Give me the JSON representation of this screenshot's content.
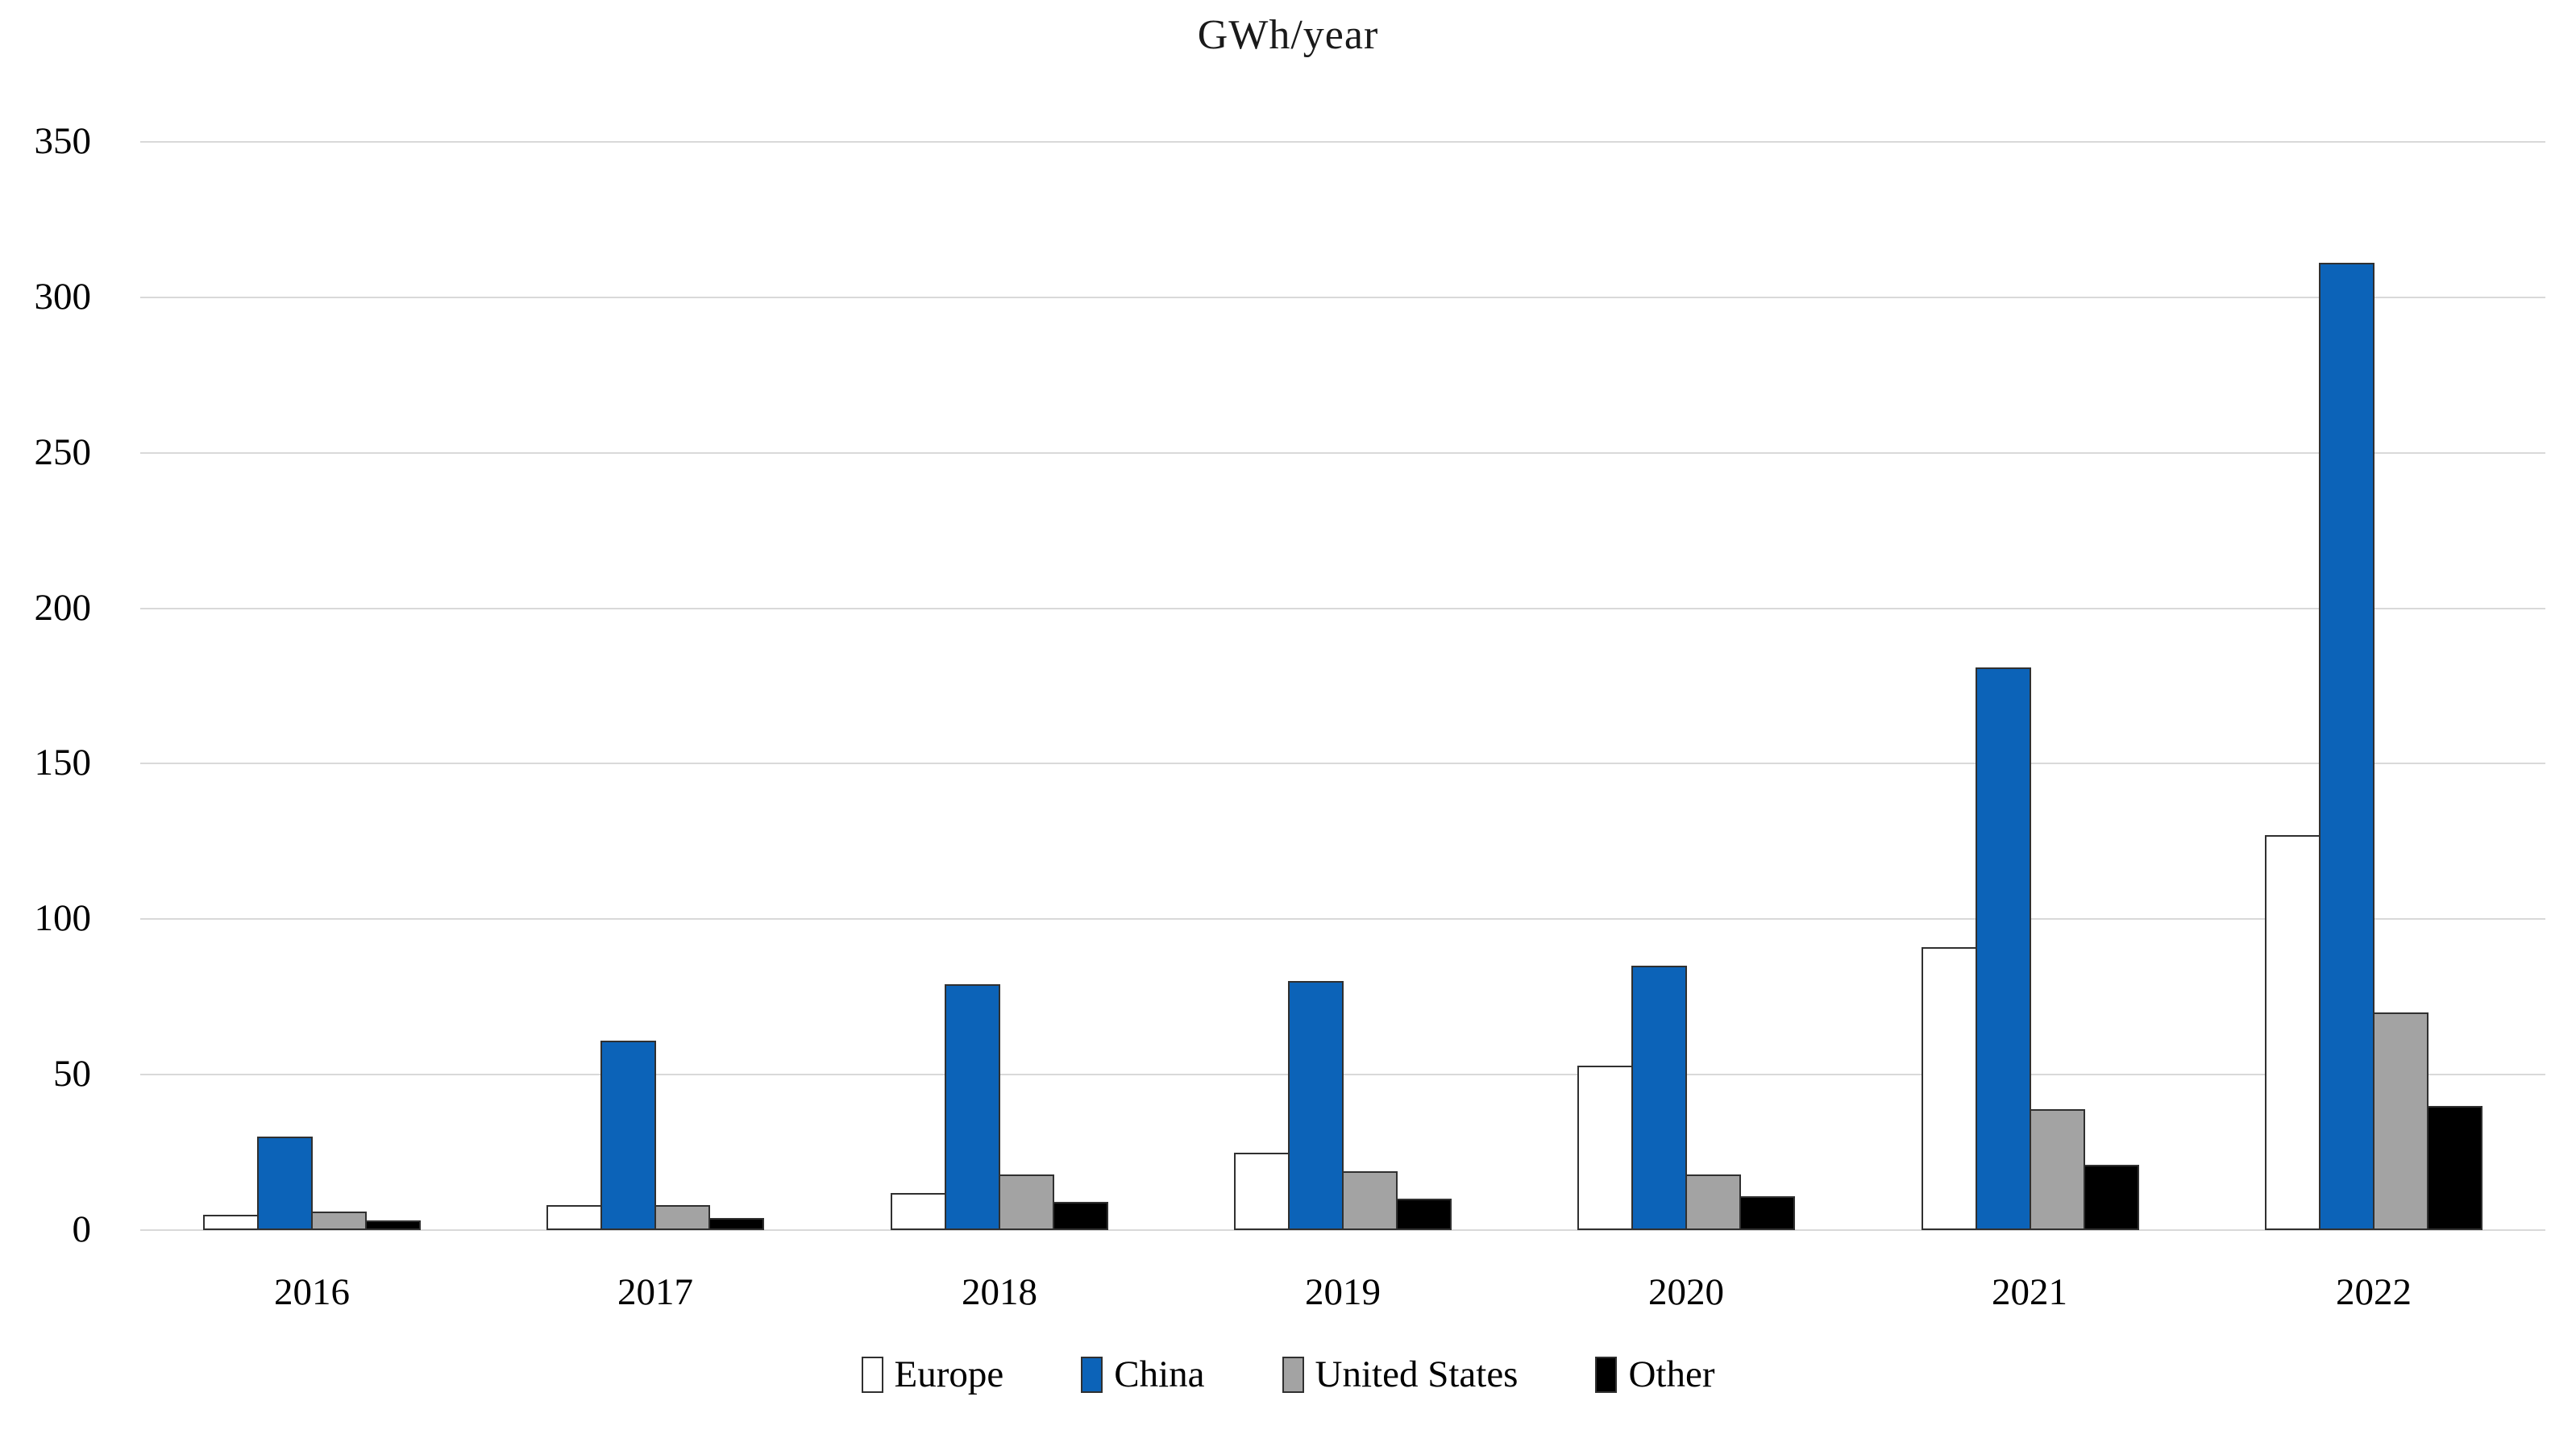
{
  "title": "GWh/year",
  "chart_data": {
    "type": "bar",
    "title": "GWh/year",
    "categories": [
      "2016",
      "2017",
      "2018",
      "2019",
      "2020",
      "2021",
      "2022"
    ],
    "series": [
      {
        "name": "Europe",
        "color": "#ffffff",
        "values": [
          5,
          8,
          12,
          25,
          53,
          91,
          127
        ]
      },
      {
        "name": "China",
        "color": "#0c63b8",
        "values": [
          30,
          61,
          79,
          80,
          85,
          181,
          311
        ]
      },
      {
        "name": "United States",
        "color": "#a3a3a3",
        "values": [
          6,
          8,
          18,
          19,
          18,
          39,
          70
        ]
      },
      {
        "name": "Other",
        "color": "#000000",
        "values": [
          3,
          4,
          9,
          10,
          11,
          21,
          40
        ]
      }
    ],
    "xlabel": "",
    "ylabel": "",
    "ylim": [
      0,
      350
    ],
    "ytick_step": 50,
    "grid": "horizontal",
    "gridline_color": "#d9d9d9",
    "bar_outline_color": "#303030",
    "legend_position": "bottom"
  }
}
